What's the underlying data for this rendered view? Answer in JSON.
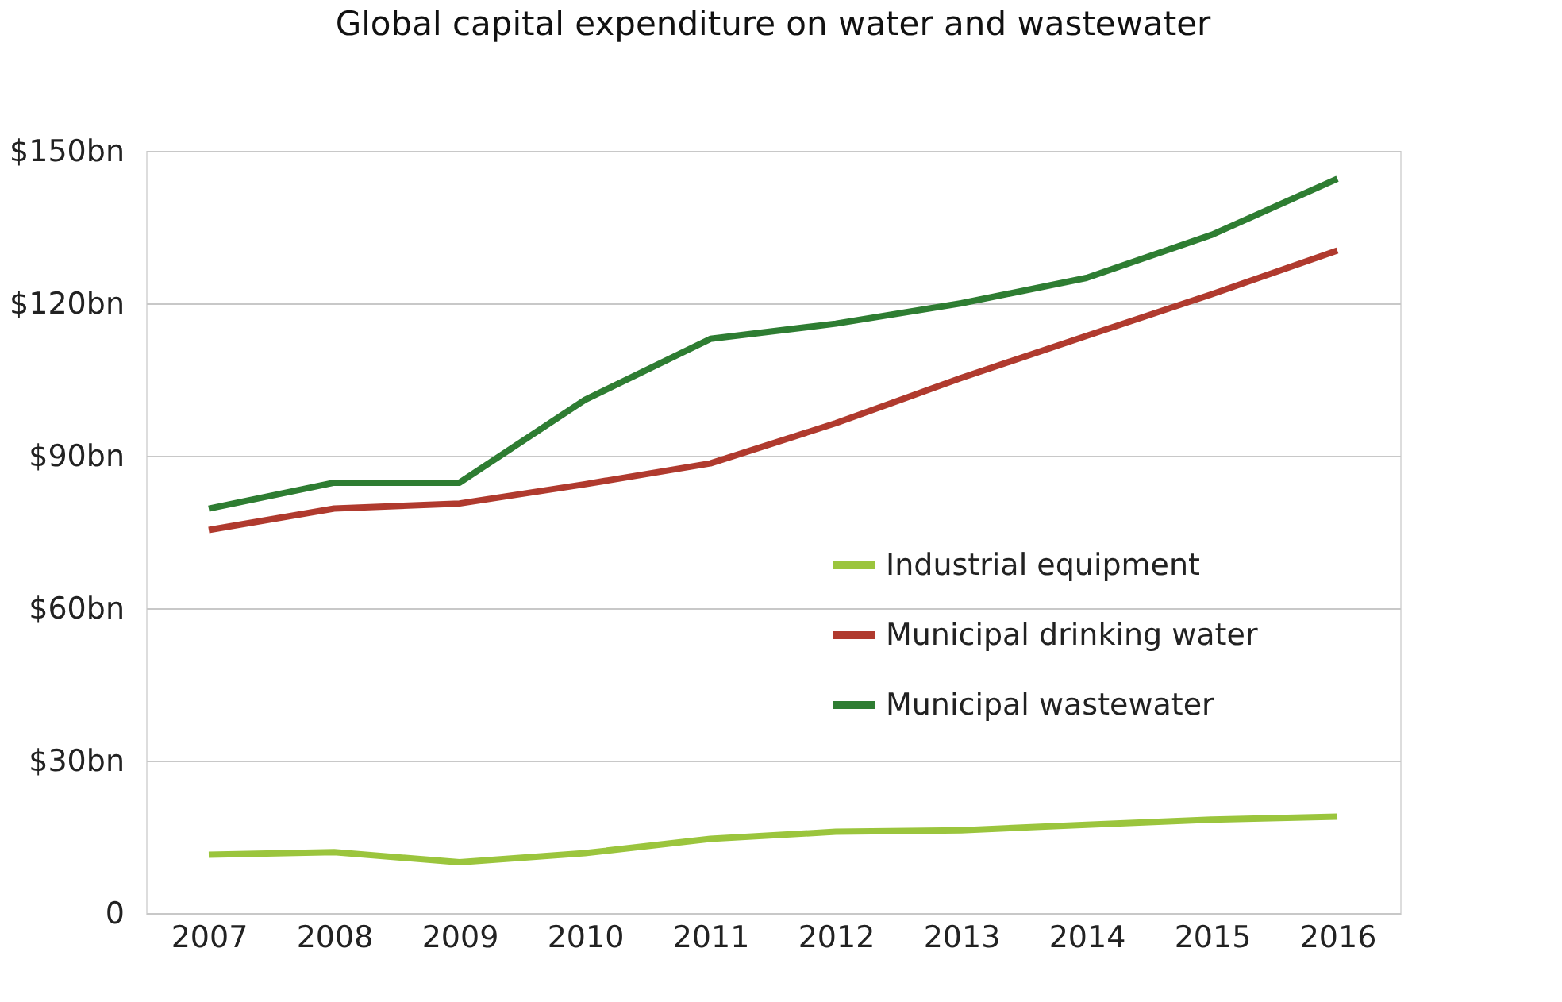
{
  "chart_data": {
    "type": "line",
    "title": "Global capital expenditure on water and wastewater",
    "categories": [
      "2007",
      "2008",
      "2009",
      "2010",
      "2011",
      "2012",
      "2013",
      "2014",
      "2015",
      "2016"
    ],
    "series": [
      {
        "name": "Industrial equipment",
        "color": "#9bc53d",
        "values": [
          11.5,
          12,
          10,
          11.8,
          14.6,
          16,
          16.3,
          17.4,
          18.4,
          19
        ]
      },
      {
        "name": "Municipal drinking water",
        "color": "#b03a2e",
        "values": [
          75.4,
          79.6,
          80.6,
          84.4,
          88.5,
          96.4,
          105.3,
          113.6,
          121.8,
          130.4
        ]
      },
      {
        "name": "Municipal wastewater",
        "color": "#2e7d32",
        "values": [
          79.6,
          84.7,
          84.7,
          101,
          113,
          116,
          120,
          125,
          133.5,
          144.5
        ]
      }
    ],
    "ylim": [
      0,
      150
    ],
    "yticks": [
      {
        "value": 0,
        "label": "0"
      },
      {
        "value": 30,
        "label": "$30bn"
      },
      {
        "value": 60,
        "label": "$60bn"
      },
      {
        "value": 90,
        "label": "$90bn"
      },
      {
        "value": 120,
        "label": "$120bn"
      },
      {
        "value": 150,
        "label": "$150bn"
      }
    ],
    "grid": "y",
    "legend": "right",
    "marker": "none",
    "line_style": "solid"
  }
}
